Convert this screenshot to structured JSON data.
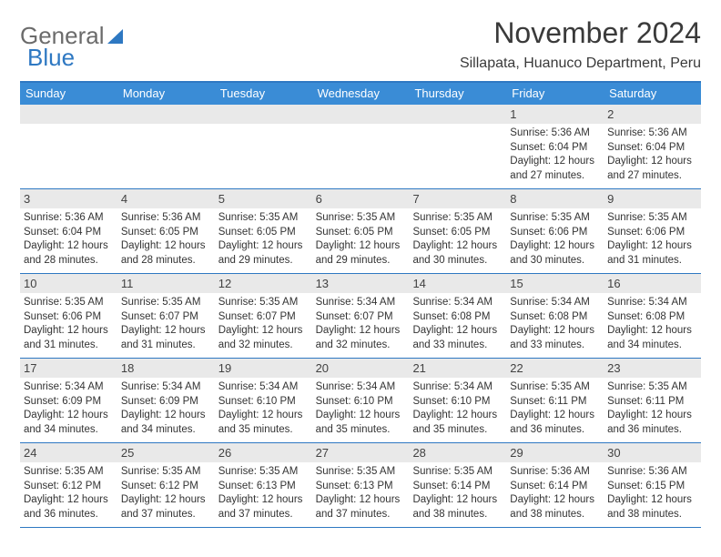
{
  "brand": {
    "word1": "General",
    "word2": "Blue"
  },
  "title": "November 2024",
  "location": "Sillapata, Huanuco Department, Peru",
  "colors": {
    "header_bar": "#3a8cd6",
    "rule": "#2e78c2",
    "daynum_bg": "#e9e9e9",
    "text": "#333333",
    "brand_gray": "#6b6b6b",
    "brand_blue": "#2e78c2"
  },
  "days_of_week": [
    "Sunday",
    "Monday",
    "Tuesday",
    "Wednesday",
    "Thursday",
    "Friday",
    "Saturday"
  ],
  "weeks": [
    [
      {
        "n": "",
        "sunrise": "",
        "sunset": "",
        "day1": "",
        "day2": ""
      },
      {
        "n": "",
        "sunrise": "",
        "sunset": "",
        "day1": "",
        "day2": ""
      },
      {
        "n": "",
        "sunrise": "",
        "sunset": "",
        "day1": "",
        "day2": ""
      },
      {
        "n": "",
        "sunrise": "",
        "sunset": "",
        "day1": "",
        "day2": ""
      },
      {
        "n": "",
        "sunrise": "",
        "sunset": "",
        "day1": "",
        "day2": ""
      },
      {
        "n": "1",
        "sunrise": "Sunrise: 5:36 AM",
        "sunset": "Sunset: 6:04 PM",
        "day1": "Daylight: 12 hours",
        "day2": "and 27 minutes."
      },
      {
        "n": "2",
        "sunrise": "Sunrise: 5:36 AM",
        "sunset": "Sunset: 6:04 PM",
        "day1": "Daylight: 12 hours",
        "day2": "and 27 minutes."
      }
    ],
    [
      {
        "n": "3",
        "sunrise": "Sunrise: 5:36 AM",
        "sunset": "Sunset: 6:04 PM",
        "day1": "Daylight: 12 hours",
        "day2": "and 28 minutes."
      },
      {
        "n": "4",
        "sunrise": "Sunrise: 5:36 AM",
        "sunset": "Sunset: 6:05 PM",
        "day1": "Daylight: 12 hours",
        "day2": "and 28 minutes."
      },
      {
        "n": "5",
        "sunrise": "Sunrise: 5:35 AM",
        "sunset": "Sunset: 6:05 PM",
        "day1": "Daylight: 12 hours",
        "day2": "and 29 minutes."
      },
      {
        "n": "6",
        "sunrise": "Sunrise: 5:35 AM",
        "sunset": "Sunset: 6:05 PM",
        "day1": "Daylight: 12 hours",
        "day2": "and 29 minutes."
      },
      {
        "n": "7",
        "sunrise": "Sunrise: 5:35 AM",
        "sunset": "Sunset: 6:05 PM",
        "day1": "Daylight: 12 hours",
        "day2": "and 30 minutes."
      },
      {
        "n": "8",
        "sunrise": "Sunrise: 5:35 AM",
        "sunset": "Sunset: 6:06 PM",
        "day1": "Daylight: 12 hours",
        "day2": "and 30 minutes."
      },
      {
        "n": "9",
        "sunrise": "Sunrise: 5:35 AM",
        "sunset": "Sunset: 6:06 PM",
        "day1": "Daylight: 12 hours",
        "day2": "and 31 minutes."
      }
    ],
    [
      {
        "n": "10",
        "sunrise": "Sunrise: 5:35 AM",
        "sunset": "Sunset: 6:06 PM",
        "day1": "Daylight: 12 hours",
        "day2": "and 31 minutes."
      },
      {
        "n": "11",
        "sunrise": "Sunrise: 5:35 AM",
        "sunset": "Sunset: 6:07 PM",
        "day1": "Daylight: 12 hours",
        "day2": "and 31 minutes."
      },
      {
        "n": "12",
        "sunrise": "Sunrise: 5:35 AM",
        "sunset": "Sunset: 6:07 PM",
        "day1": "Daylight: 12 hours",
        "day2": "and 32 minutes."
      },
      {
        "n": "13",
        "sunrise": "Sunrise: 5:34 AM",
        "sunset": "Sunset: 6:07 PM",
        "day1": "Daylight: 12 hours",
        "day2": "and 32 minutes."
      },
      {
        "n": "14",
        "sunrise": "Sunrise: 5:34 AM",
        "sunset": "Sunset: 6:08 PM",
        "day1": "Daylight: 12 hours",
        "day2": "and 33 minutes."
      },
      {
        "n": "15",
        "sunrise": "Sunrise: 5:34 AM",
        "sunset": "Sunset: 6:08 PM",
        "day1": "Daylight: 12 hours",
        "day2": "and 33 minutes."
      },
      {
        "n": "16",
        "sunrise": "Sunrise: 5:34 AM",
        "sunset": "Sunset: 6:08 PM",
        "day1": "Daylight: 12 hours",
        "day2": "and 34 minutes."
      }
    ],
    [
      {
        "n": "17",
        "sunrise": "Sunrise: 5:34 AM",
        "sunset": "Sunset: 6:09 PM",
        "day1": "Daylight: 12 hours",
        "day2": "and 34 minutes."
      },
      {
        "n": "18",
        "sunrise": "Sunrise: 5:34 AM",
        "sunset": "Sunset: 6:09 PM",
        "day1": "Daylight: 12 hours",
        "day2": "and 34 minutes."
      },
      {
        "n": "19",
        "sunrise": "Sunrise: 5:34 AM",
        "sunset": "Sunset: 6:10 PM",
        "day1": "Daylight: 12 hours",
        "day2": "and 35 minutes."
      },
      {
        "n": "20",
        "sunrise": "Sunrise: 5:34 AM",
        "sunset": "Sunset: 6:10 PM",
        "day1": "Daylight: 12 hours",
        "day2": "and 35 minutes."
      },
      {
        "n": "21",
        "sunrise": "Sunrise: 5:34 AM",
        "sunset": "Sunset: 6:10 PM",
        "day1": "Daylight: 12 hours",
        "day2": "and 35 minutes."
      },
      {
        "n": "22",
        "sunrise": "Sunrise: 5:35 AM",
        "sunset": "Sunset: 6:11 PM",
        "day1": "Daylight: 12 hours",
        "day2": "and 36 minutes."
      },
      {
        "n": "23",
        "sunrise": "Sunrise: 5:35 AM",
        "sunset": "Sunset: 6:11 PM",
        "day1": "Daylight: 12 hours",
        "day2": "and 36 minutes."
      }
    ],
    [
      {
        "n": "24",
        "sunrise": "Sunrise: 5:35 AM",
        "sunset": "Sunset: 6:12 PM",
        "day1": "Daylight: 12 hours",
        "day2": "and 36 minutes."
      },
      {
        "n": "25",
        "sunrise": "Sunrise: 5:35 AM",
        "sunset": "Sunset: 6:12 PM",
        "day1": "Daylight: 12 hours",
        "day2": "and 37 minutes."
      },
      {
        "n": "26",
        "sunrise": "Sunrise: 5:35 AM",
        "sunset": "Sunset: 6:13 PM",
        "day1": "Daylight: 12 hours",
        "day2": "and 37 minutes."
      },
      {
        "n": "27",
        "sunrise": "Sunrise: 5:35 AM",
        "sunset": "Sunset: 6:13 PM",
        "day1": "Daylight: 12 hours",
        "day2": "and 37 minutes."
      },
      {
        "n": "28",
        "sunrise": "Sunrise: 5:35 AM",
        "sunset": "Sunset: 6:14 PM",
        "day1": "Daylight: 12 hours",
        "day2": "and 38 minutes."
      },
      {
        "n": "29",
        "sunrise": "Sunrise: 5:36 AM",
        "sunset": "Sunset: 6:14 PM",
        "day1": "Daylight: 12 hours",
        "day2": "and 38 minutes."
      },
      {
        "n": "30",
        "sunrise": "Sunrise: 5:36 AM",
        "sunset": "Sunset: 6:15 PM",
        "day1": "Daylight: 12 hours",
        "day2": "and 38 minutes."
      }
    ]
  ]
}
